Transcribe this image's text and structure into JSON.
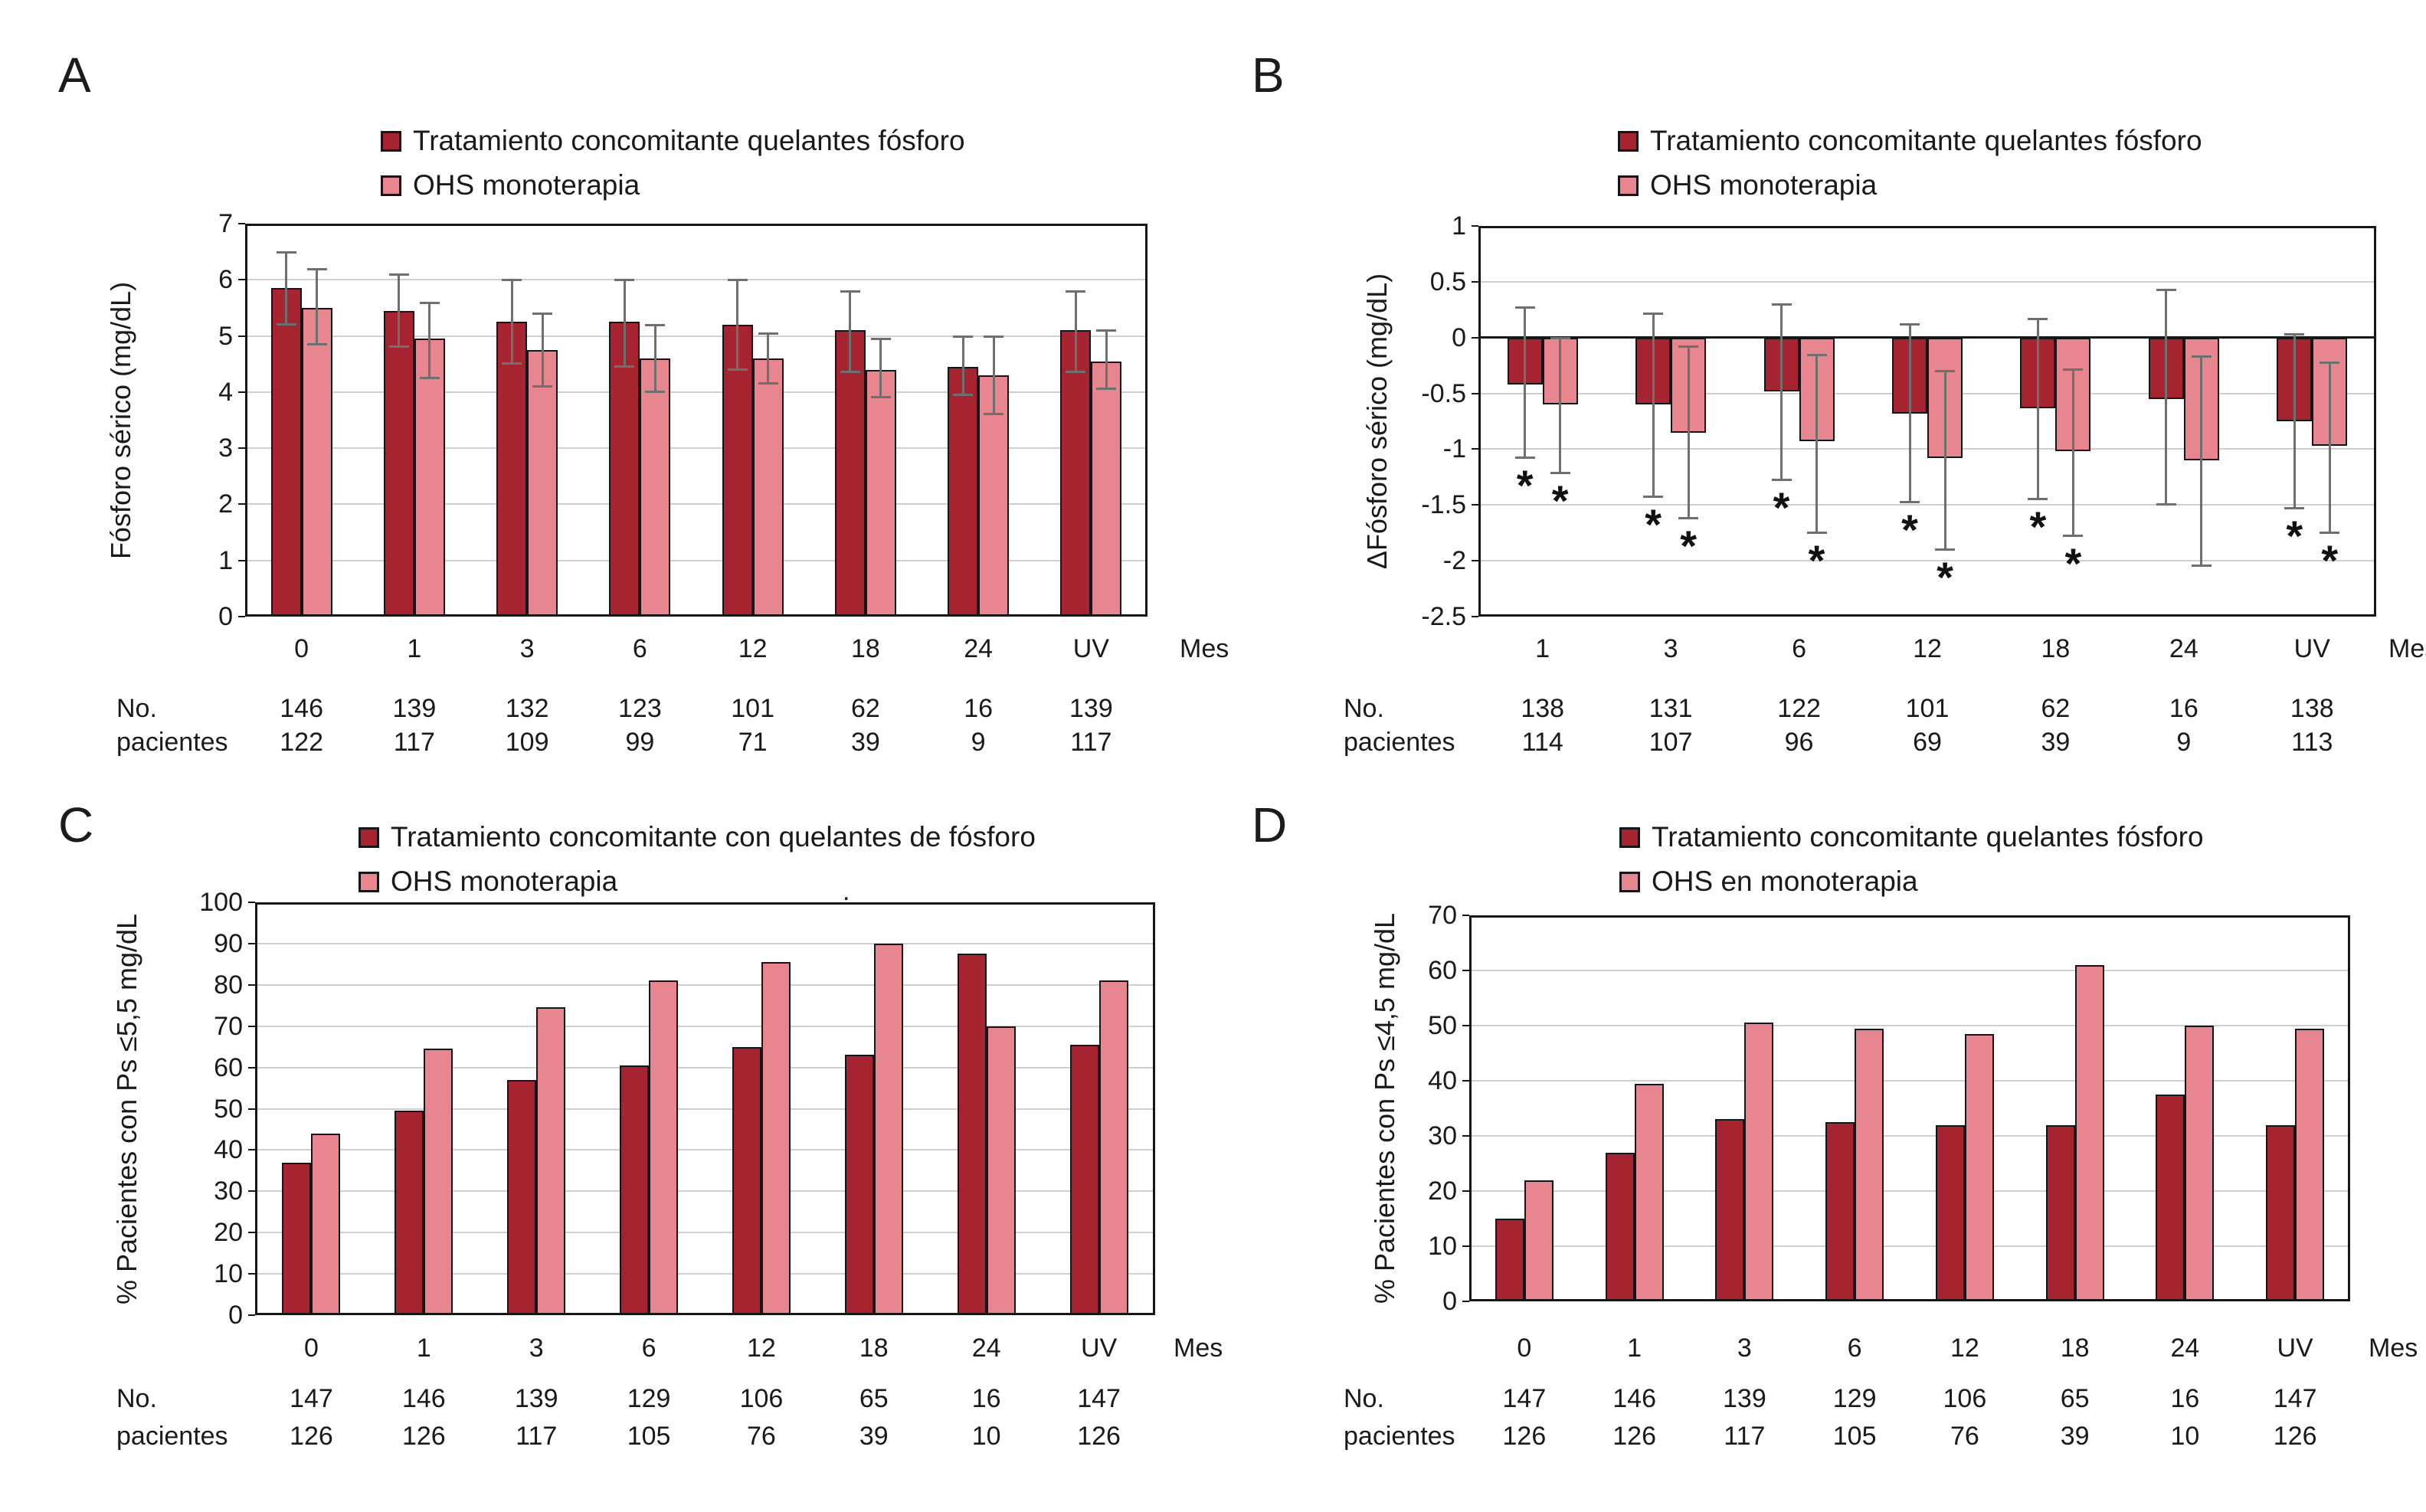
{
  "palette": {
    "dark_red": "#A6242F",
    "light_pink": "#E8868F",
    "error_bar_gray": "#6F6F6F",
    "gridline": "#CFCFCF",
    "text": "#1A1A1A"
  },
  "chart_data": [
    {
      "panel": "A",
      "letter": "A",
      "type": "bar",
      "legend": [
        "Tratamiento concomitante quelantes fósforo",
        "OHS monoterapia"
      ],
      "ylabel": "Fósforo sérico (mg/dL)",
      "xlabel": "Mes",
      "ylim": [
        0,
        7
      ],
      "yticks": [
        "0",
        "1",
        "2",
        "3",
        "4",
        "5",
        "6",
        "7"
      ],
      "grid": true,
      "legend_position": "top",
      "categories": [
        "0",
        "1",
        "3",
        "6",
        "12",
        "18",
        "24",
        "UV"
      ],
      "series": [
        {
          "name": "Tratamiento concomitante quelantes fósforo",
          "color": "#A6242F",
          "values": [
            5.85,
            5.45,
            5.25,
            5.25,
            5.2,
            5.1,
            4.45,
            5.1
          ],
          "err_hi": [
            6.5,
            6.1,
            6.0,
            6.0,
            6.0,
            5.8,
            5.0,
            5.8
          ],
          "err_lo": [
            5.2,
            4.8,
            4.5,
            4.45,
            4.4,
            4.35,
            3.95,
            4.35
          ]
        },
        {
          "name": "OHS monoterapia",
          "color": "#E8868F",
          "values": [
            5.5,
            4.95,
            4.75,
            4.6,
            4.6,
            4.4,
            4.3,
            4.55
          ],
          "err_hi": [
            6.2,
            5.6,
            5.4,
            5.2,
            5.05,
            4.95,
            5.0,
            5.1
          ],
          "err_lo": [
            4.85,
            4.25,
            4.1,
            4.0,
            4.15,
            3.9,
            3.6,
            4.05
          ]
        }
      ],
      "n_labels": [
        "No.",
        "pacientes"
      ],
      "n_rows": [
        [
          "146",
          "139",
          "132",
          "123",
          "101",
          "62",
          "16",
          "139"
        ],
        [
          "122",
          "117",
          "109",
          "99",
          "71",
          "39",
          "9",
          "117"
        ]
      ]
    },
    {
      "panel": "B",
      "letter": "B",
      "type": "bar",
      "legend": [
        "Tratamiento concomitante quelantes fósforo",
        "OHS monoterapia"
      ],
      "ylabel": "ΔFósforo sérico (mg/dL)",
      "xlabel": "Mes",
      "ylim": [
        -2.5,
        1
      ],
      "yticks": [
        "1",
        "0.5",
        "0",
        "-0.5",
        "-1",
        "-1.5",
        "-2",
        "-2.5"
      ],
      "grid": true,
      "legend_position": "top",
      "sig_symbol": "*",
      "categories": [
        "1",
        "3",
        "6",
        "12",
        "18",
        "24",
        "UV"
      ],
      "series": [
        {
          "name": "Tratamiento concomitante quelantes fósforo",
          "color": "#A6242F",
          "values": [
            -0.42,
            -0.6,
            -0.48,
            -0.68,
            -0.63,
            -0.55,
            -0.75
          ],
          "err_hi": [
            0.27,
            0.22,
            0.3,
            0.12,
            0.17,
            0.43,
            0.03
          ],
          "err_lo": [
            -1.08,
            -1.43,
            -1.28,
            -1.48,
            -1.45,
            -1.5,
            -1.53
          ],
          "sig": [
            true,
            true,
            true,
            true,
            true,
            false,
            true
          ]
        },
        {
          "name": "OHS monoterapia",
          "color": "#E8868F",
          "values": [
            -0.6,
            -0.85,
            -0.93,
            -1.08,
            -1.02,
            -1.1,
            -0.97
          ],
          "err_hi": [
            0.0,
            -0.08,
            -0.15,
            -0.3,
            -0.28,
            -0.17,
            -0.22
          ],
          "err_lo": [
            -1.22,
            -1.62,
            -1.75,
            -1.9,
            -1.78,
            -2.05,
            -1.75
          ],
          "sig": [
            true,
            true,
            true,
            true,
            true,
            false,
            true
          ]
        }
      ],
      "n_labels": [
        "No.",
        "pacientes"
      ],
      "n_rows": [
        [
          "138",
          "131",
          "122",
          "101",
          "62",
          "16",
          "138"
        ],
        [
          "114",
          "107",
          "96",
          "69",
          "39",
          "9",
          "113"
        ]
      ]
    },
    {
      "panel": "C",
      "letter": "C",
      "type": "bar",
      "legend": [
        "Tratamiento concomitante con quelantes de fósforo",
        "OHS monoterapia"
      ],
      "ylabel": "% Pacientes con Ps ≤5,5 mg/dL",
      "xlabel": "Mes",
      "ylim": [
        0,
        100
      ],
      "yticks": [
        "0",
        "10",
        "20",
        "30",
        "40",
        "50",
        "60",
        "70",
        "80",
        "90",
        "100"
      ],
      "grid": true,
      "legend_position": "top",
      "note": ".",
      "categories": [
        "0",
        "1",
        "3",
        "6",
        "12",
        "18",
        "24",
        "UV"
      ],
      "series": [
        {
          "name": "Tratamiento concomitante con quelantes de fósforo",
          "color": "#A6242F",
          "values": [
            37,
            49.5,
            57,
            60.5,
            65,
            63,
            87.5,
            65.5
          ]
        },
        {
          "name": "OHS monoterapia",
          "color": "#E8868F",
          "values": [
            44,
            64.5,
            74.5,
            81,
            85.5,
            90,
            70,
            81
          ]
        }
      ],
      "n_labels": [
        "No.",
        "pacientes"
      ],
      "n_rows": [
        [
          "147",
          "146",
          "139",
          "129",
          "106",
          "65",
          "16",
          "147"
        ],
        [
          "126",
          "126",
          "117",
          "105",
          "76",
          "39",
          "10",
          "126"
        ]
      ]
    },
    {
      "panel": "D",
      "letter": "D",
      "type": "bar",
      "legend": [
        "Tratamiento concomitante quelantes fósforo",
        "OHS en monoterapia"
      ],
      "ylabel": "% Pacientes con Ps ≤4,5 mg/dL",
      "xlabel": "Mes",
      "ylim": [
        0,
        70
      ],
      "yticks": [
        "0",
        "10",
        "20",
        "30",
        "40",
        "50",
        "60",
        "70"
      ],
      "grid": true,
      "legend_position": "top",
      "categories": [
        "0",
        "1",
        "3",
        "6",
        "12",
        "18",
        "24",
        "UV"
      ],
      "series": [
        {
          "name": "Tratamiento concomitante quelantes fósforo",
          "color": "#A6242F",
          "values": [
            15,
            27,
            33,
            32.5,
            32,
            32,
            37.5,
            32
          ]
        },
        {
          "name": "OHS en monoterapia",
          "color": "#E8868F",
          "values": [
            22,
            39.5,
            50.5,
            49.5,
            48.5,
            61,
            50,
            49.5
          ]
        }
      ],
      "n_labels": [
        "No.",
        "pacientes"
      ],
      "n_rows": [
        [
          "147",
          "146",
          "139",
          "129",
          "106",
          "65",
          "16",
          "147"
        ],
        [
          "126",
          "126",
          "117",
          "105",
          "76",
          "39",
          "10",
          "126"
        ]
      ]
    }
  ]
}
